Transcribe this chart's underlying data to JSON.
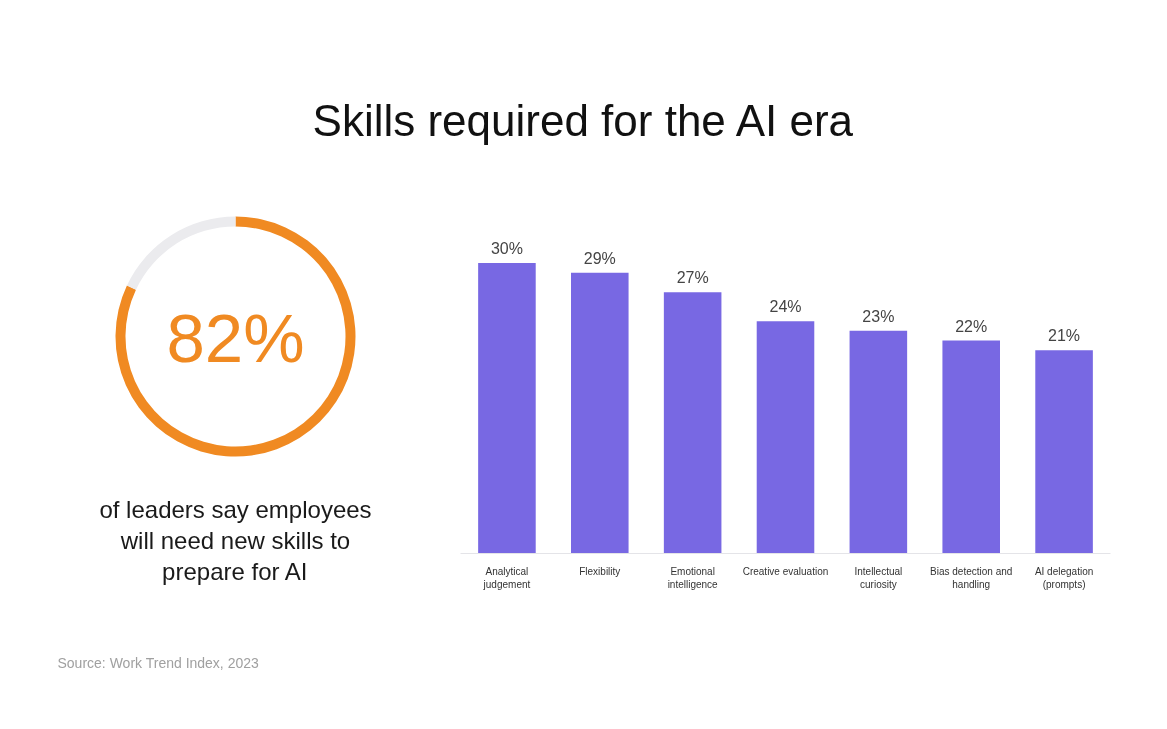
{
  "chart_data": [
    {
      "type": "donut",
      "title": "Skills required for the AI era",
      "subtitle": "of leaders say employees will need new skills to prepare for AI",
      "annotations": [
        "Source: Work Trend Index, 2023"
      ],
      "categories": [
        null,
        null
      ],
      "values": [
        82,
        18
      ],
      "colors": [
        "#f08a22",
        "#ebebee"
      ],
      "value_labels": [
        "82%",
        null
      ]
    },
    {
      "type": "bar",
      "categories": [
        "Analytical judgement",
        "Flexibility",
        "Emotional intelligence",
        "Creative evaluation",
        "Intellectual curiosity",
        "Bias detection and handling",
        "AI delegation (prompts)"
      ],
      "values": [
        30,
        29,
        27,
        24,
        23,
        22,
        21
      ],
      "color": "#7868e3",
      "value_labels": [
        "30%",
        "29%",
        "27%",
        "24%",
        "23%",
        "22%",
        "21%"
      ]
    }
  ]
}
